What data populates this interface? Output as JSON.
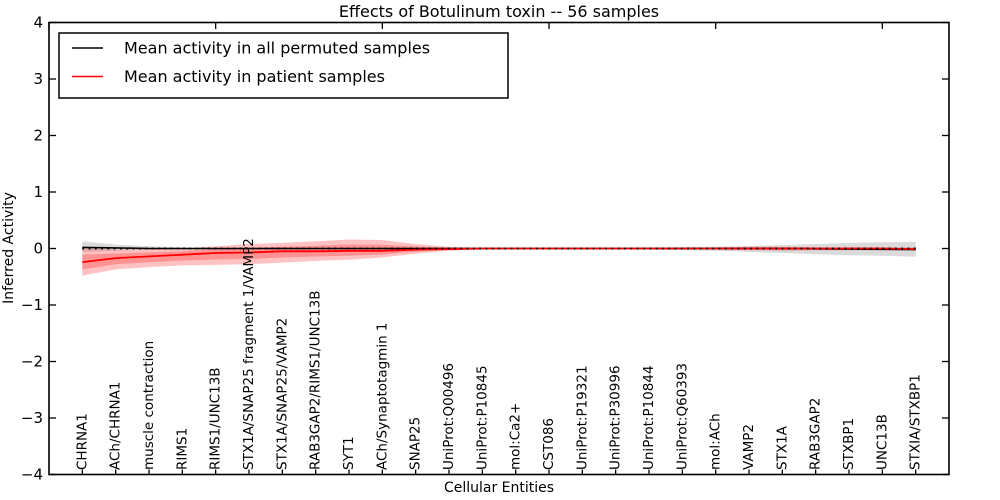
{
  "window": {
    "background": "#ffffff"
  },
  "chart_data": {
    "type": "line",
    "title": "Effects of Botulinum toxin -- 56 samples",
    "xlabel": "Cellular Entities",
    "ylabel": "Inferred Activity",
    "ylim": [
      -4,
      4
    ],
    "yticks": [
      -4,
      -3,
      -2,
      -1,
      0,
      1,
      2,
      3,
      4
    ],
    "xlim": [
      0,
      27
    ],
    "xticks_major": [
      0,
      5,
      10,
      15,
      20,
      25
    ],
    "grid": false,
    "legend_position": "upper left",
    "n_samples_in_title": "56",
    "categories": [
      "CHRNA1",
      "ACh/CHRNA1",
      "muscle contraction",
      "RIMS1",
      "RIMS1/UNC13B",
      "STX1A/SNAP25 fragment 1/VAMP2",
      "STX1A/SNAP25/VAMP2",
      "RAB3GAP2/RIMS1/UNC13B",
      "SYT1",
      "ACh/Synaptotagmin 1",
      "SNAP25",
      "UniProt:Q00496",
      "UniProt:P10845",
      "mol:Ca2+",
      "CST086",
      "UniProt:P19321",
      "UniProt:P30996",
      "UniProt:P10844",
      "UniProt:Q60393",
      "mol:ACh",
      "VAMP2",
      "STX1A",
      "RAB3GAP2",
      "STXBP1",
      "UNC13B",
      "STXIA/STXBP1"
    ],
    "series": [
      {
        "name": "Mean activity in all permuted samples",
        "color": "#000000",
        "line_width": 1.6,
        "band_color": "rgba(0,0,0,0.14)",
        "values": [
          0.02,
          0.01,
          0,
          0,
          0,
          0,
          0,
          0,
          0,
          0,
          0,
          0,
          0,
          0,
          0,
          0,
          0,
          0,
          0,
          0,
          0,
          0,
          -0.005,
          -0.01,
          -0.015,
          -0.02
        ],
        "band_upper": [
          0.13,
          0.07,
          0.04,
          0.02,
          0.015,
          0.015,
          0.015,
          0.015,
          0.015,
          0.015,
          0.015,
          0.015,
          0.015,
          0.015,
          0.015,
          0.015,
          0.015,
          0.02,
          0.025,
          0.03,
          0.045,
          0.06,
          0.08,
          0.1,
          0.11,
          0.12
        ],
        "band_lower": [
          -0.06,
          -0.04,
          -0.02,
          -0.015,
          -0.015,
          -0.015,
          -0.015,
          -0.015,
          -0.015,
          -0.015,
          -0.015,
          -0.015,
          -0.015,
          -0.015,
          -0.015,
          -0.015,
          -0.015,
          -0.02,
          -0.03,
          -0.04,
          -0.06,
          -0.08,
          -0.1,
          -0.12,
          -0.13,
          -0.145
        ]
      },
      {
        "name": "Mean activity in patient samples",
        "color": "#ff0000",
        "line_width": 1.8,
        "band_color": "rgba(255,0,0,0.24)",
        "inner_band_factor": 0.55,
        "values": [
          -0.24,
          -0.17,
          -0.14,
          -0.11,
          -0.08,
          -0.07,
          -0.05,
          -0.05,
          -0.04,
          -0.04,
          -0.02,
          -0.01,
          0,
          0,
          0,
          0,
          0,
          0,
          0,
          0,
          0,
          0,
          0,
          0,
          0,
          -0.01
        ],
        "band_upper": [
          0,
          -0.02,
          -0.01,
          0,
          0.04,
          0.08,
          0.1,
          0.13,
          0.16,
          0.15,
          0.08,
          0.03,
          0.01,
          0.01,
          0.01,
          0.01,
          0.01,
          0.01,
          0.01,
          0.02,
          0.03,
          0.03,
          0.02,
          0.02,
          0.02,
          0.02
        ],
        "band_lower": [
          -0.48,
          -0.37,
          -0.33,
          -0.3,
          -0.29,
          -0.28,
          -0.25,
          -0.22,
          -0.2,
          -0.16,
          -0.09,
          -0.04,
          -0.02,
          -0.01,
          -0.01,
          -0.01,
          -0.01,
          -0.01,
          -0.01,
          -0.02,
          -0.03,
          -0.04,
          -0.03,
          -0.03,
          -0.03,
          -0.03
        ]
      }
    ],
    "zero_line": {
      "y": 0,
      "style": "dotted",
      "color": "#000000"
    }
  }
}
